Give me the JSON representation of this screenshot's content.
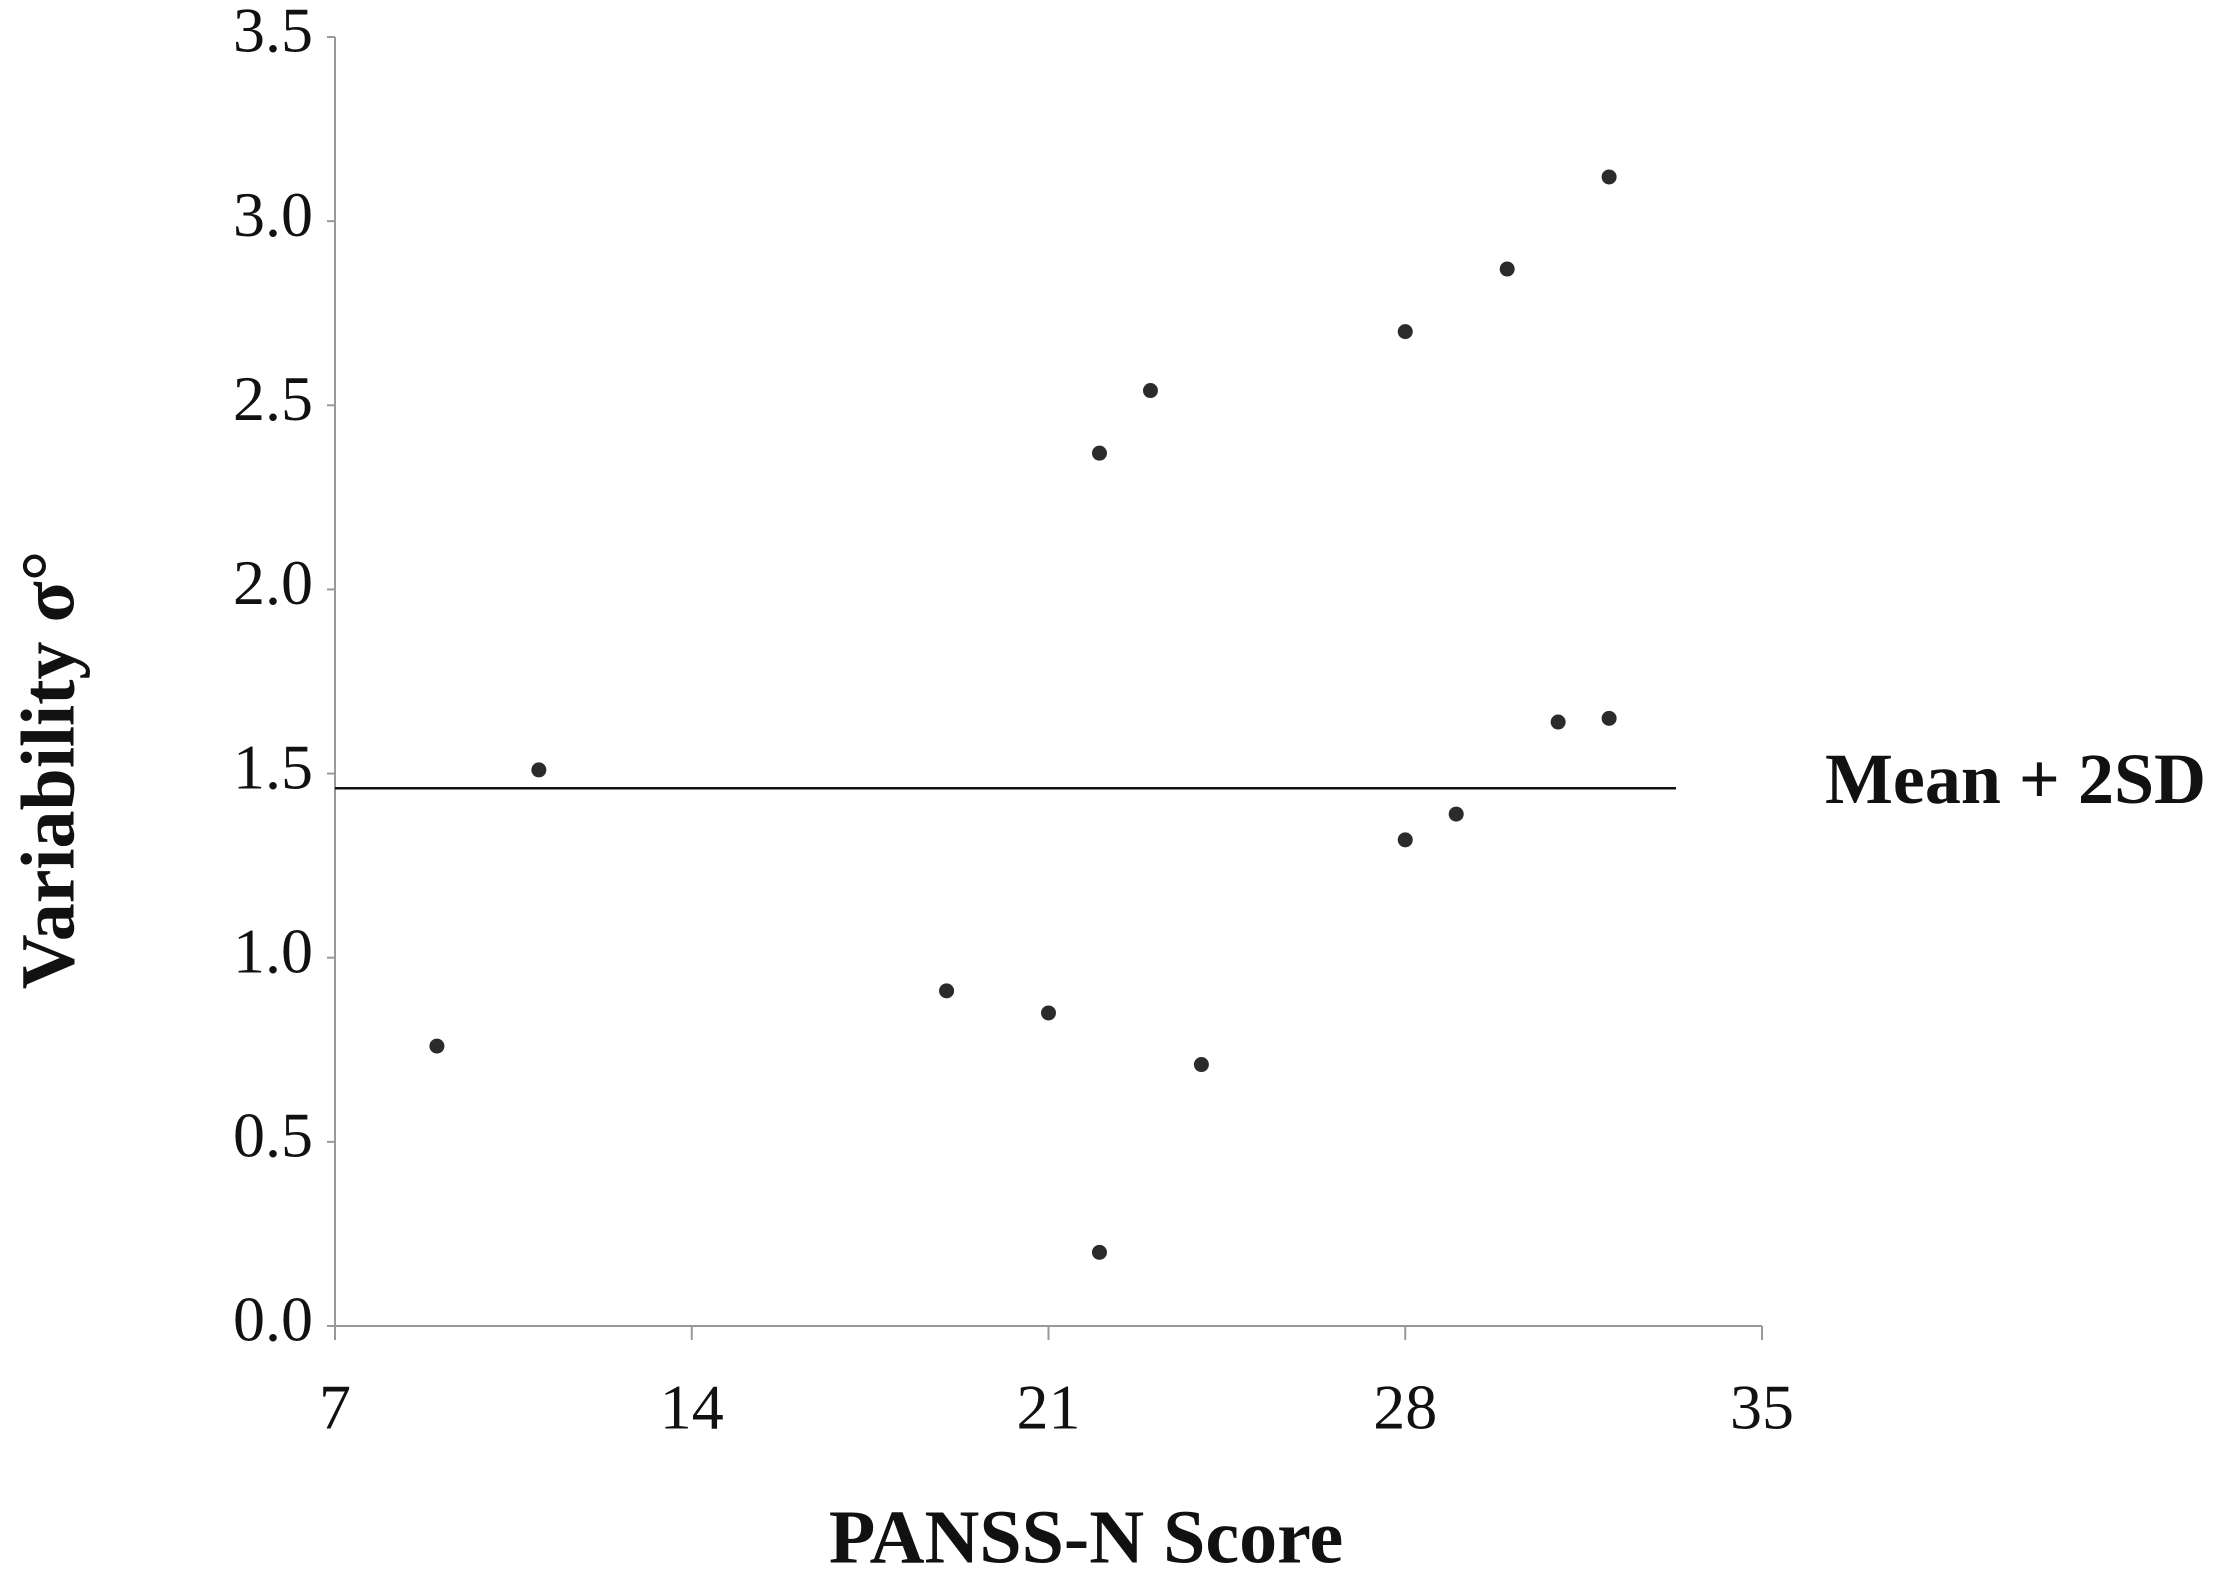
{
  "chart_data": {
    "type": "scatter",
    "x_label": "PANSS-N  Score",
    "y_label": "Variability σ°",
    "x": [
      9,
      11,
      19,
      21,
      22,
      22,
      23,
      24,
      28,
      28,
      29,
      30,
      31,
      32,
      32
    ],
    "values": [
      0.76,
      1.51,
      0.91,
      0.85,
      2.37,
      0.2,
      2.54,
      0.71,
      2.7,
      1.32,
      1.39,
      2.87,
      1.64,
      1.65,
      3.12
    ],
    "color": "#2b2b2b",
    "xlim": [
      7,
      35
    ],
    "xticks": [
      7,
      14,
      21,
      28,
      35
    ],
    "ylim": [
      0,
      3.5
    ],
    "yticks": [
      {
        "value": 0,
        "label": "0.0"
      },
      {
        "value": 0.5,
        "label": "0.5"
      },
      {
        "value": 1,
        "label": "1.0"
      },
      {
        "value": 1.5,
        "label": "1.5"
      },
      {
        "value": 2,
        "label": "2.0"
      },
      {
        "value": 2.5,
        "label": "2.5"
      },
      {
        "value": 3,
        "label": "3.0"
      },
      {
        "value": 3.5,
        "label": "3.5"
      }
    ],
    "reference_line": {
      "value": 1.46,
      "label": "Mean + 2SD"
    }
  }
}
